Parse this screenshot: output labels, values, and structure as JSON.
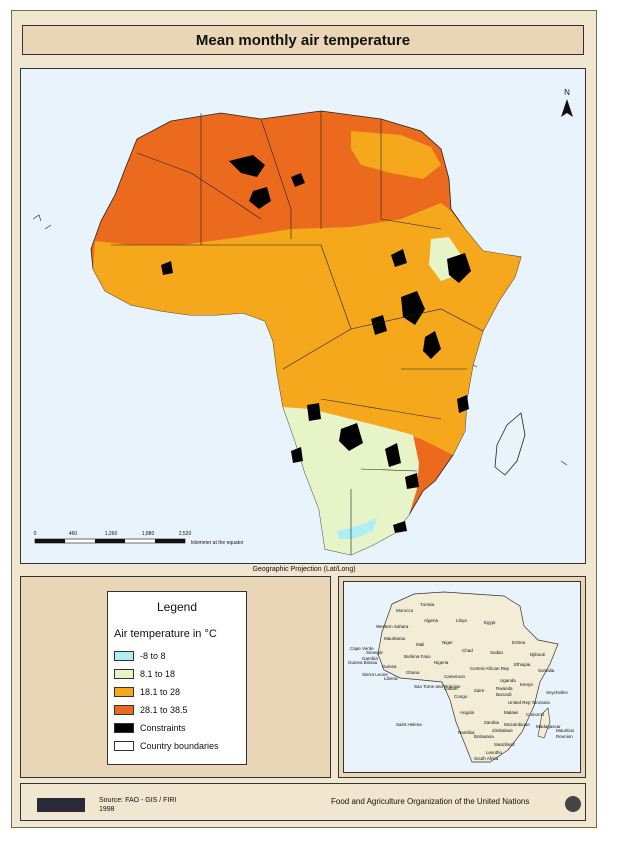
{
  "title": "Mean monthly air temperature",
  "north_label": "N",
  "scale_bar": {
    "ticks": [
      "0",
      "460",
      "1,260",
      "1,880",
      "2,520"
    ],
    "unit_label": "kilometer at the equator"
  },
  "projection": "Geographic Projection (Lat/Long)",
  "legend": {
    "title": "Legend",
    "subtitle": "Air temperature in °C",
    "items": [
      {
        "label": "-8 to 8",
        "color": "#aeeef5"
      },
      {
        "label": "8.1 to 18",
        "color": "#e6f4c7"
      },
      {
        "label": "18.1 to  28",
        "color": "#f5a81c"
      },
      {
        "label": "28.1 to 38.5",
        "color": "#ec6a1e"
      },
      {
        "label": "Constraints",
        "color": "#000000"
      },
      {
        "label": "Country boundaries",
        "color": "#ffffff"
      }
    ]
  },
  "inset_countries": [
    "Morocco",
    "Tunisia",
    "Algeria",
    "Libya",
    "Egypt",
    "Western Sahara",
    "Mauritania",
    "Mali",
    "Niger",
    "Chad",
    "Sudan",
    "Eritrea",
    "Cape Verde",
    "Senegal",
    "Gambia",
    "Guinea Bissau",
    "Guinea",
    "Sierra Leone",
    "Liberia",
    "Burkina Faso",
    "Ghana",
    "Nigeria",
    "Ethiopia",
    "Djibouti",
    "Somalia",
    "Cameroon",
    "Central African Rep",
    "Sao Tome and Principe",
    "Gabon",
    "Congo",
    "Zaire",
    "Uganda",
    "Kenya",
    "Rwanda",
    "Burundi",
    "United Rep Tanzania",
    "Seychelles",
    "Angola",
    "Malawi",
    "Comoros",
    "Mozambique",
    "Zambia",
    "Zimbabwe",
    "Namibia",
    "Botswana",
    "Madagascar",
    "Mauritius",
    "Reunion",
    "Swaziland",
    "Lesotho",
    "South Africa",
    "Saint Helena"
  ],
  "footer": {
    "source": "Source: FAO - GIS / FIRI",
    "year": "1998",
    "organization": "Food and Agriculture Organization of the United Nations"
  }
}
